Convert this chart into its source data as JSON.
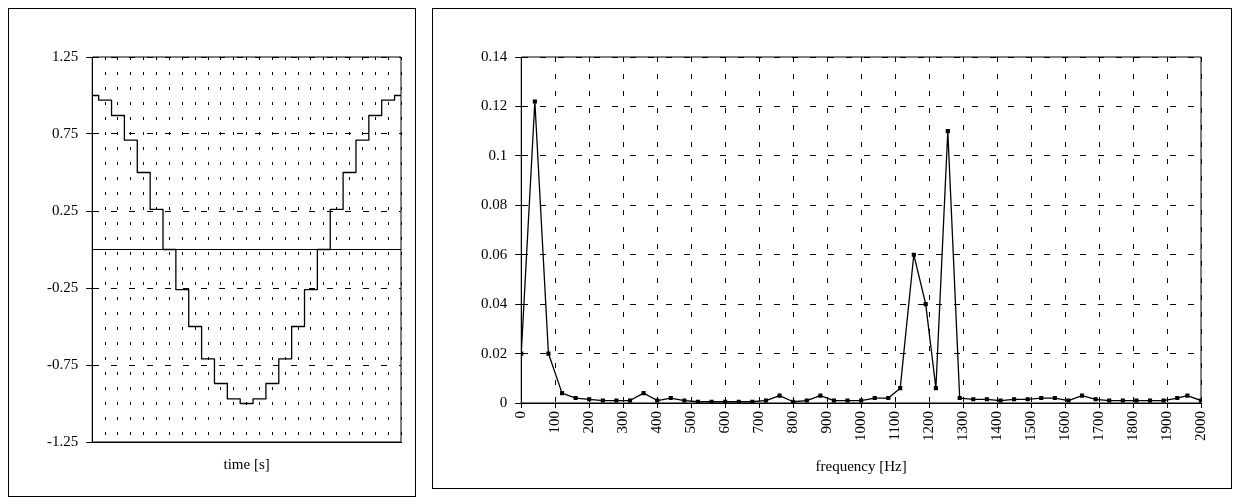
{
  "chart_data": [
    {
      "type": "step",
      "xlabel": "time [s]",
      "categories": [
        null,
        null,
        null,
        null,
        null,
        null,
        null,
        null,
        null,
        null,
        null,
        null,
        null,
        null,
        null,
        null,
        null,
        null,
        null,
        null,
        null,
        null,
        null,
        null,
        null
      ],
      "series": [
        {
          "color": "#000000",
          "values": [
            1.0,
            0.97,
            0.87,
            0.71,
            0.5,
            0.26,
            0,
            -0.26,
            -0.5,
            -0.71,
            -0.87,
            -0.97,
            -1.0,
            -0.97,
            -0.87,
            -0.71,
            -0.5,
            -0.26,
            0,
            0.26,
            0.5,
            0.71,
            0.87,
            0.97,
            1.0
          ]
        }
      ],
      "ylim": [
        -1.25,
        1.25
      ],
      "yticks": [
        -1.25,
        -0.75,
        -0.25,
        0.25,
        0.75,
        1.25
      ],
      "grid": true,
      "legend": false,
      "tick_labels": "y",
      "ref_lines": [
        {
          "axis": "y",
          "value": 0
        }
      ]
    },
    {
      "type": "line",
      "xlabel": "frequency [Hz]",
      "x": [
        0,
        40,
        80,
        120,
        160,
        200,
        240,
        280,
        320,
        360,
        400,
        440,
        480,
        520,
        560,
        600,
        640,
        680,
        720,
        760,
        800,
        840,
        880,
        920,
        960,
        1000,
        1040,
        1080,
        1115,
        1155,
        1190,
        1220,
        1255,
        1290,
        1330,
        1370,
        1410,
        1450,
        1490,
        1530,
        1570,
        1610,
        1650,
        1690,
        1730,
        1770,
        1810,
        1850,
        1890,
        1930,
        1960,
        2000
      ],
      "series": [
        {
          "color": "#000000",
          "values": [
            0.02,
            0.122,
            0.02,
            0.004,
            0.002,
            0.0015,
            0.001,
            0.001,
            0.001,
            0.004,
            0.001,
            0.002,
            0.001,
            0.0005,
            0.0005,
            0.0005,
            0.0005,
            0.0005,
            0.001,
            0.003,
            0.0005,
            0.001,
            0.003,
            0.001,
            0.001,
            0.001,
            0.002,
            0.002,
            0.006,
            0.06,
            0.04,
            0.006,
            0.11,
            0.002,
            0.0015,
            0.0015,
            0.001,
            0.0015,
            0.0015,
            0.002,
            0.002,
            0.001,
            0.003,
            0.0015,
            0.001,
            0.001,
            0.001,
            0.001,
            0.001,
            0.002,
            0.003,
            0.001
          ]
        }
      ],
      "xlim": [
        0,
        2000
      ],
      "xticks": [
        0,
        100,
        200,
        300,
        400,
        500,
        600,
        700,
        800,
        900,
        1000,
        1100,
        1200,
        1300,
        1400,
        1500,
        1600,
        1700,
        1800,
        1900,
        2000
      ],
      "ylim": [
        0,
        0.14
      ],
      "yticks": [
        0,
        0.02,
        0.04,
        0.06,
        0.08,
        0.1,
        0.12,
        0.14
      ],
      "grid": true,
      "legend": false,
      "marker": "square"
    }
  ]
}
